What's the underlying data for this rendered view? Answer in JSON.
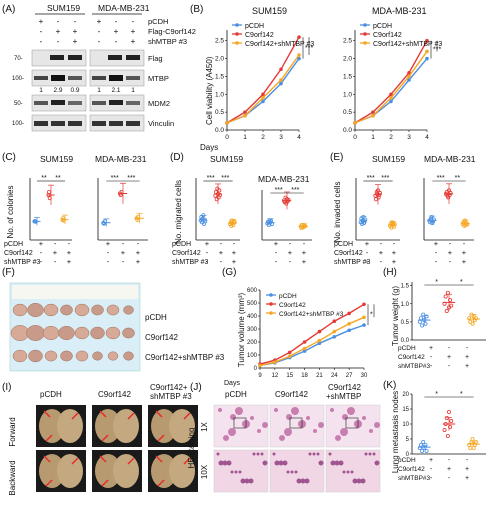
{
  "panels": {
    "A": {
      "label": "(A)",
      "cell_lines": [
        "SUM159",
        "MDA-MB-231"
      ],
      "conditions": [
        "pCDH",
        "Flag-C9orf142",
        "shMTBP #3"
      ],
      "signs": [
        [
          "+",
          "-",
          "-",
          "+",
          "-",
          "-"
        ],
        [
          "-",
          "+",
          "+",
          "-",
          "+",
          "+"
        ],
        [
          "-",
          "-",
          "+",
          "-",
          "-",
          "+"
        ]
      ],
      "blots": [
        "Flag",
        "MTBP",
        "MDM2",
        "Vinculin"
      ],
      "mw": [
        "70-",
        "100-",
        "50-",
        "100-"
      ],
      "mtbp_quant": [
        "1",
        "2.9",
        "0.9",
        "1",
        "2.1",
        "1"
      ]
    },
    "B": {
      "label": "(B)",
      "ylabel": "Cell viability (A450)",
      "xlabel": "Days",
      "legend": [
        "pCDH",
        "C9orf142",
        "C9orf142+shMTBP #3"
      ],
      "colors": [
        "#4a90e2",
        "#e53935",
        "#f5a623"
      ],
      "x_ticks": [
        "0",
        "1",
        "2",
        "3",
        "4"
      ],
      "y_ticks": [
        "0.0",
        "0.5",
        "1.0",
        "1.5",
        "2.0",
        "2.5"
      ],
      "sig": "***"
    },
    "C": {
      "label": "(C)",
      "ylabel": "No. of colonies",
      "sig": "**",
      "sig2": "***"
    },
    "D": {
      "label": "(D)",
      "ylabel": "No. migrated cells",
      "sig": "***"
    },
    "E": {
      "label": "(E)",
      "ylabel": "No. invaded cells",
      "sig": "***",
      "sig2": "**"
    },
    "row2_conditions": [
      "pCDH",
      "C9orf142",
      "shMTBP #3"
    ],
    "row2_signs": [
      [
        "+",
        "-",
        "-"
      ],
      [
        "-",
        "+",
        "+"
      ],
      [
        "-",
        "-",
        "+"
      ]
    ],
    "F": {
      "label": "(F)",
      "groups": [
        "pCDH",
        "C9orf142",
        "C9orf142+shMTBP #3"
      ]
    },
    "G": {
      "label": "(G)",
      "ylabel": "Tumor volume (mm³)",
      "xlabel": "Days",
      "legend": [
        "pCDH",
        "C9orf142",
        "C9orf142+shMTBP #3"
      ],
      "x_ticks": [
        "9",
        "12",
        "15",
        "18",
        "21",
        "24",
        "27",
        "30"
      ],
      "y_ticks": [
        "0",
        "100",
        "200",
        "300",
        "400",
        "500",
        "600"
      ],
      "sig": "*"
    },
    "H": {
      "label": "(H)",
      "ylabel": "Tumor weight (g)",
      "y_ticks": [
        "0.0",
        "0.5",
        "1.0",
        "1.5"
      ],
      "conditions": [
        "pCDH",
        "C9orf142",
        "shMTBP#3"
      ],
      "sig": "*"
    },
    "I": {
      "label": "(I)",
      "columns": [
        "pCDH",
        "C9orf142",
        "C9orf142+\nshMTBP #3"
      ],
      "rows": [
        "Forward",
        "Backward"
      ]
    },
    "J": {
      "label": "(J)",
      "columns": [
        "pCDH",
        "C9orf142",
        "C9orf142\n+shMTBP"
      ],
      "rows": [
        "1X",
        "10X"
      ],
      "side": "HE staining"
    },
    "K": {
      "label": "(K)",
      "ylabel": "Lung metastasis nodes",
      "y_ticks": [
        "0",
        "5",
        "10",
        "15",
        "20"
      ],
      "conditions": [
        "pCDH",
        "C9orf142",
        "shMTBP#3"
      ],
      "sig": "*"
    }
  },
  "chart_data": [
    {
      "type": "line",
      "title": "SUM159",
      "xlabel": "Days",
      "ylabel": "Cell viability (A450)",
      "x": [
        0,
        1,
        2,
        3,
        4
      ],
      "ylim": [
        0,
        2.8
      ],
      "series": [
        {
          "name": "pCDH",
          "values": [
            0.2,
            0.4,
            0.8,
            1.3,
            2.0
          ]
        },
        {
          "name": "C9orf142",
          "values": [
            0.2,
            0.5,
            1.0,
            1.7,
            2.6
          ]
        },
        {
          "name": "C9orf142+shMTBP #3",
          "values": [
            0.2,
            0.4,
            0.9,
            1.4,
            2.1
          ]
        }
      ]
    },
    {
      "type": "line",
      "title": "MDA-MB-231",
      "xlabel": "Days",
      "ylabel": "",
      "x": [
        0,
        1,
        2,
        3,
        4
      ],
      "ylim": [
        0,
        2.8
      ],
      "series": [
        {
          "name": "pCDH",
          "values": [
            0.2,
            0.4,
            0.8,
            1.4,
            2.0
          ]
        },
        {
          "name": "C9orf142",
          "values": [
            0.2,
            0.5,
            1.0,
            1.6,
            2.5
          ]
        },
        {
          "name": "C9orf142+shMTBP #3",
          "values": [
            0.2,
            0.4,
            0.9,
            1.5,
            2.2
          ]
        }
      ]
    },
    {
      "type": "line",
      "xlabel": "Days",
      "ylabel": "Tumor volume (mm³)",
      "x": [
        9,
        12,
        15,
        18,
        21,
        24,
        27,
        30
      ],
      "ylim": [
        0,
        600
      ],
      "series": [
        {
          "name": "pCDH",
          "values": [
            20,
            40,
            80,
            130,
            190,
            240,
            290,
            330
          ]
        },
        {
          "name": "C9orf142",
          "values": [
            30,
            60,
            120,
            200,
            280,
            360,
            420,
            490
          ]
        },
        {
          "name": "C9orf142+shMTBP #3",
          "values": [
            20,
            45,
            90,
            150,
            210,
            280,
            340,
            390
          ]
        }
      ]
    }
  ]
}
